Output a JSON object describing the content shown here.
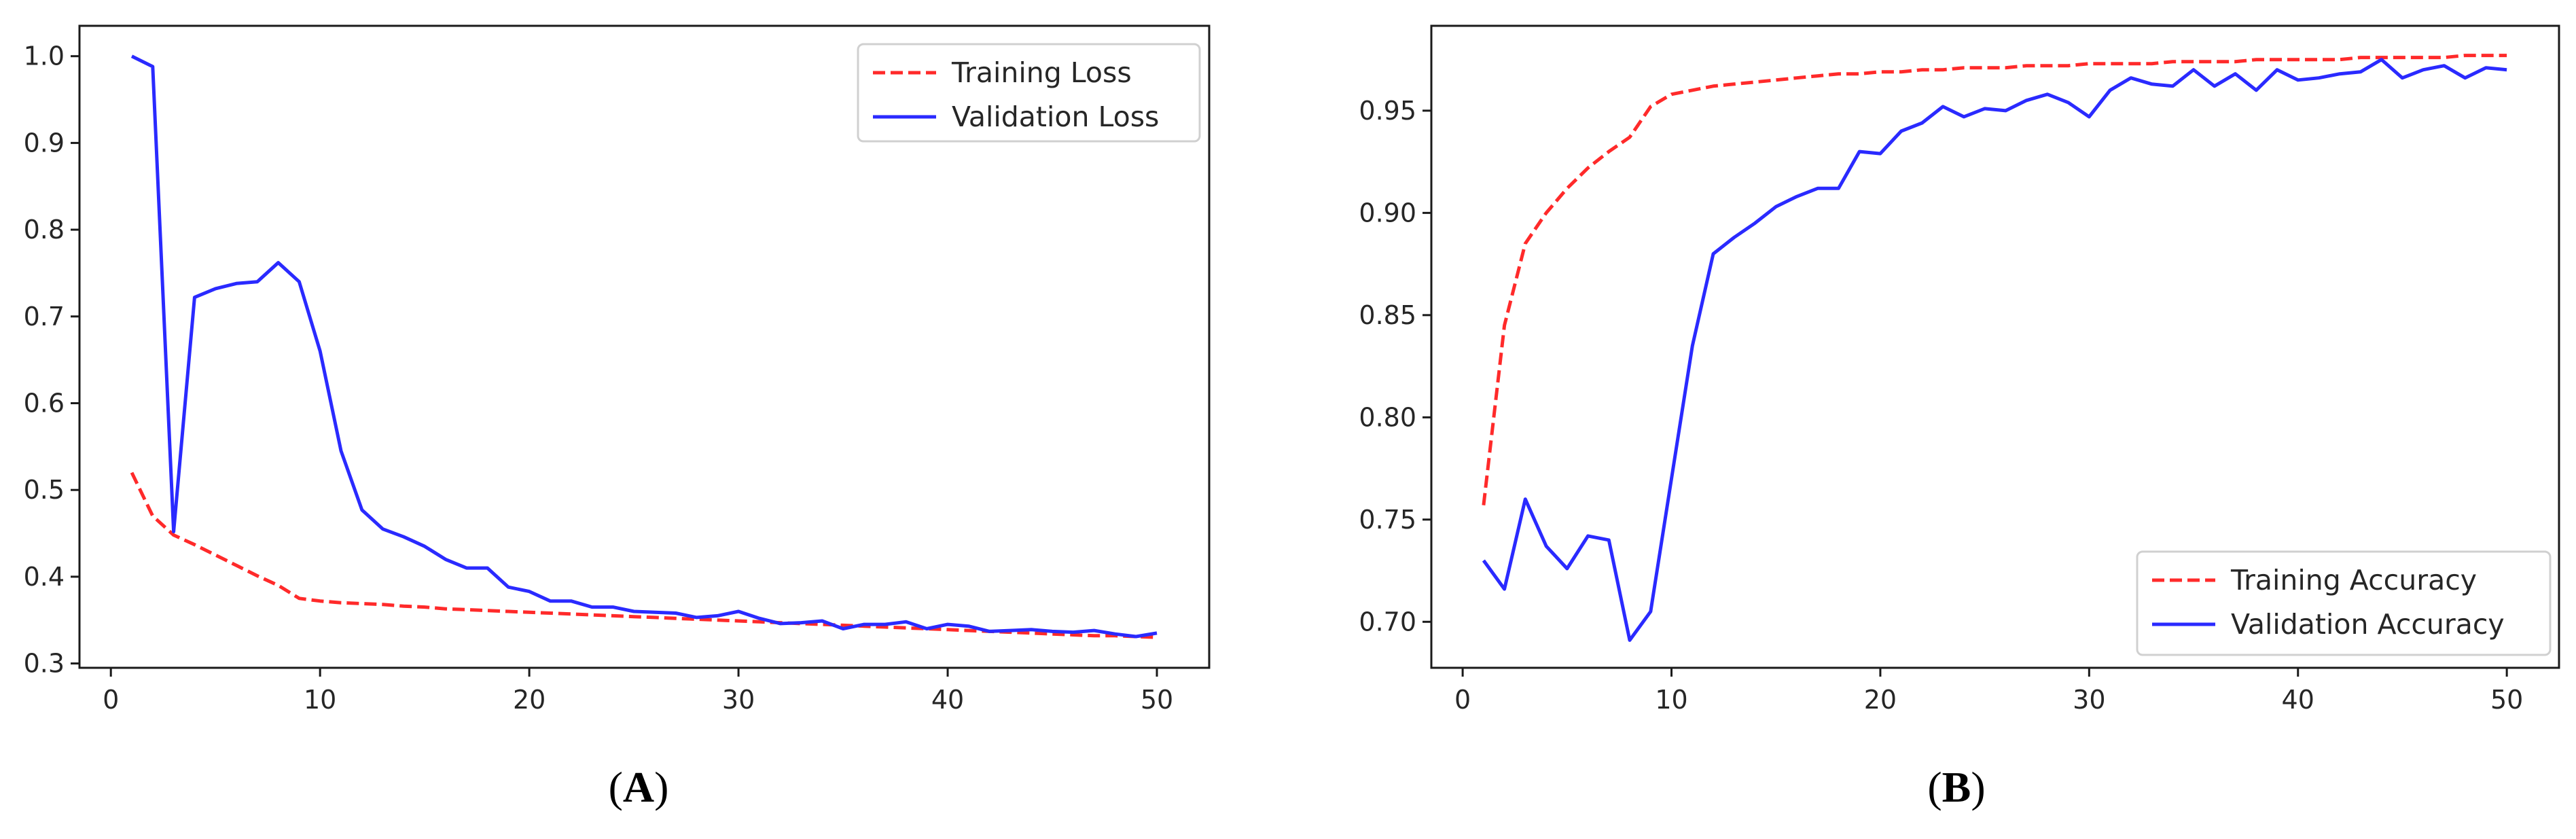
{
  "panels": {
    "a": {
      "label_open": "(",
      "label_letter": "A",
      "label_close": ")"
    },
    "b": {
      "label_open": "(",
      "label_letter": "B",
      "label_close": ")"
    }
  },
  "chart_data": [
    {
      "type": "line",
      "title": "",
      "xlabel": "",
      "ylabel": "",
      "xlim": [
        -1.5,
        52.5
      ],
      "ylim": [
        0.295,
        1.035
      ],
      "xticks": [
        0,
        10,
        20,
        30,
        40,
        50
      ],
      "xtick_labels": [
        "0",
        "10",
        "20",
        "30",
        "40",
        "50"
      ],
      "yticks": [
        0.3,
        0.4,
        0.5,
        0.6,
        0.7,
        0.8,
        0.9,
        1.0
      ],
      "ytick_labels": [
        "0.3",
        "0.4",
        "0.5",
        "0.6",
        "0.7",
        "0.8",
        "0.9",
        "1.0"
      ],
      "grid": false,
      "legend_position": "top-right",
      "x": [
        1,
        2,
        3,
        4,
        5,
        6,
        7,
        8,
        9,
        10,
        11,
        12,
        13,
        14,
        15,
        16,
        17,
        18,
        19,
        20,
        21,
        22,
        23,
        24,
        25,
        26,
        27,
        28,
        29,
        30,
        31,
        32,
        33,
        34,
        35,
        36,
        37,
        38,
        39,
        40,
        41,
        42,
        43,
        44,
        45,
        46,
        47,
        48,
        49,
        50
      ],
      "series": [
        {
          "name": "Training Loss",
          "color": "#ff2a2a",
          "style": "dashed",
          "values": [
            0.52,
            0.47,
            0.448,
            0.437,
            0.425,
            0.413,
            0.401,
            0.39,
            0.375,
            0.372,
            0.37,
            0.369,
            0.368,
            0.366,
            0.365,
            0.363,
            0.362,
            0.361,
            0.36,
            0.359,
            0.358,
            0.357,
            0.356,
            0.355,
            0.354,
            0.353,
            0.352,
            0.351,
            0.35,
            0.349,
            0.348,
            0.347,
            0.346,
            0.345,
            0.344,
            0.343,
            0.342,
            0.341,
            0.34,
            0.339,
            0.338,
            0.337,
            0.336,
            0.335,
            0.334,
            0.333,
            0.332,
            0.332,
            0.331,
            0.33
          ]
        },
        {
          "name": "Validation Loss",
          "color": "#2a2aff",
          "style": "solid",
          "values": [
            1.0,
            0.988,
            0.452,
            0.722,
            0.732,
            0.738,
            0.74,
            0.762,
            0.74,
            0.66,
            0.545,
            0.477,
            0.455,
            0.446,
            0.435,
            0.42,
            0.41,
            0.41,
            0.388,
            0.383,
            0.372,
            0.372,
            0.365,
            0.365,
            0.36,
            0.359,
            0.358,
            0.353,
            0.355,
            0.36,
            0.352,
            0.346,
            0.347,
            0.349,
            0.34,
            0.345,
            0.345,
            0.348,
            0.34,
            0.345,
            0.343,
            0.337,
            0.338,
            0.339,
            0.337,
            0.336,
            0.338,
            0.334,
            0.331,
            0.335
          ]
        }
      ]
    },
    {
      "type": "line",
      "title": "",
      "xlabel": "",
      "ylabel": "",
      "xlim": [
        -1.5,
        52.5
      ],
      "ylim": [
        0.6775,
        0.9915
      ],
      "xticks": [
        0,
        10,
        20,
        30,
        40,
        50
      ],
      "xtick_labels": [
        "0",
        "10",
        "20",
        "30",
        "40",
        "50"
      ],
      "yticks": [
        0.7,
        0.75,
        0.8,
        0.85,
        0.9,
        0.95
      ],
      "ytick_labels": [
        "0.70",
        "0.75",
        "0.80",
        "0.85",
        "0.90",
        "0.95"
      ],
      "grid": false,
      "legend_position": "bottom-right",
      "x": [
        1,
        2,
        3,
        4,
        5,
        6,
        7,
        8,
        9,
        10,
        11,
        12,
        13,
        14,
        15,
        16,
        17,
        18,
        19,
        20,
        21,
        22,
        23,
        24,
        25,
        26,
        27,
        28,
        29,
        30,
        31,
        32,
        33,
        34,
        35,
        36,
        37,
        38,
        39,
        40,
        41,
        42,
        43,
        44,
        45,
        46,
        47,
        48,
        49,
        50
      ],
      "series": [
        {
          "name": "Training Accuracy",
          "color": "#ff2a2a",
          "style": "dashed",
          "values": [
            0.757,
            0.845,
            0.885,
            0.9,
            0.912,
            0.922,
            0.93,
            0.937,
            0.952,
            0.958,
            0.96,
            0.962,
            0.963,
            0.964,
            0.965,
            0.966,
            0.967,
            0.968,
            0.968,
            0.969,
            0.969,
            0.97,
            0.97,
            0.971,
            0.971,
            0.971,
            0.972,
            0.972,
            0.972,
            0.973,
            0.973,
            0.973,
            0.973,
            0.974,
            0.974,
            0.974,
            0.974,
            0.975,
            0.975,
            0.975,
            0.975,
            0.975,
            0.976,
            0.976,
            0.976,
            0.976,
            0.976,
            0.977,
            0.977,
            0.977
          ]
        },
        {
          "name": "Validation Accuracy",
          "color": "#2a2aff",
          "style": "solid",
          "values": [
            0.73,
            0.716,
            0.76,
            0.737,
            0.726,
            0.742,
            0.74,
            0.691,
            0.705,
            0.77,
            0.835,
            0.88,
            0.888,
            0.895,
            0.903,
            0.908,
            0.912,
            0.912,
            0.93,
            0.929,
            0.94,
            0.944,
            0.952,
            0.947,
            0.951,
            0.95,
            0.955,
            0.958,
            0.954,
            0.947,
            0.96,
            0.966,
            0.963,
            0.962,
            0.97,
            0.962,
            0.968,
            0.96,
            0.97,
            0.965,
            0.966,
            0.968,
            0.969,
            0.975,
            0.966,
            0.97,
            0.972,
            0.966,
            0.971,
            0.97
          ]
        }
      ]
    }
  ]
}
